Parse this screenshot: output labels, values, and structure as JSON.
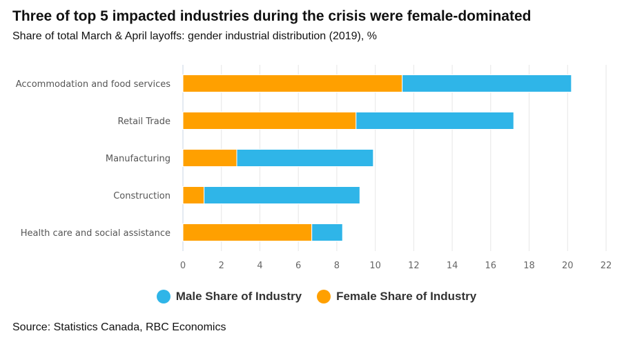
{
  "header": {
    "title": "Three of top 5 impacted industries during the crisis were female-dominated",
    "subtitle": "Share of total March & April layoffs: gender industrial distribution (2019), %"
  },
  "footer": {
    "source": "Source: Statistics Canada, RBC Economics"
  },
  "colors": {
    "male": "#2fb5e8",
    "female": "#ffa000",
    "grid": "#e6e6e6",
    "axis": "#c9d6e6"
  },
  "chart_data": {
    "type": "bar",
    "orientation": "horizontal",
    "stacked": true,
    "title": "Three of top 5 impacted industries during the crisis were female-dominated",
    "subtitle": "Share of total March & April layoffs: gender industrial distribution (2019), %",
    "categories": [
      "Accommodation and food services",
      "Retail Trade",
      "Manufacturing",
      "Construction",
      "Health care and social assistance"
    ],
    "series": [
      {
        "name": "Female Share of Industry",
        "color": "#ffa000",
        "values": [
          11.4,
          9.0,
          2.8,
          1.1,
          6.7
        ]
      },
      {
        "name": "Male Share of Industry",
        "color": "#2fb5e8",
        "values": [
          8.8,
          8.2,
          7.1,
          8.1,
          1.6
        ]
      }
    ],
    "legend_order": [
      "Male Share of Industry",
      "Female Share of Industry"
    ],
    "xlim": [
      0,
      22
    ],
    "xticks": [
      0,
      2,
      4,
      6,
      8,
      10,
      12,
      14,
      16,
      18,
      20,
      22
    ],
    "grid": true,
    "legend": "bottom"
  }
}
